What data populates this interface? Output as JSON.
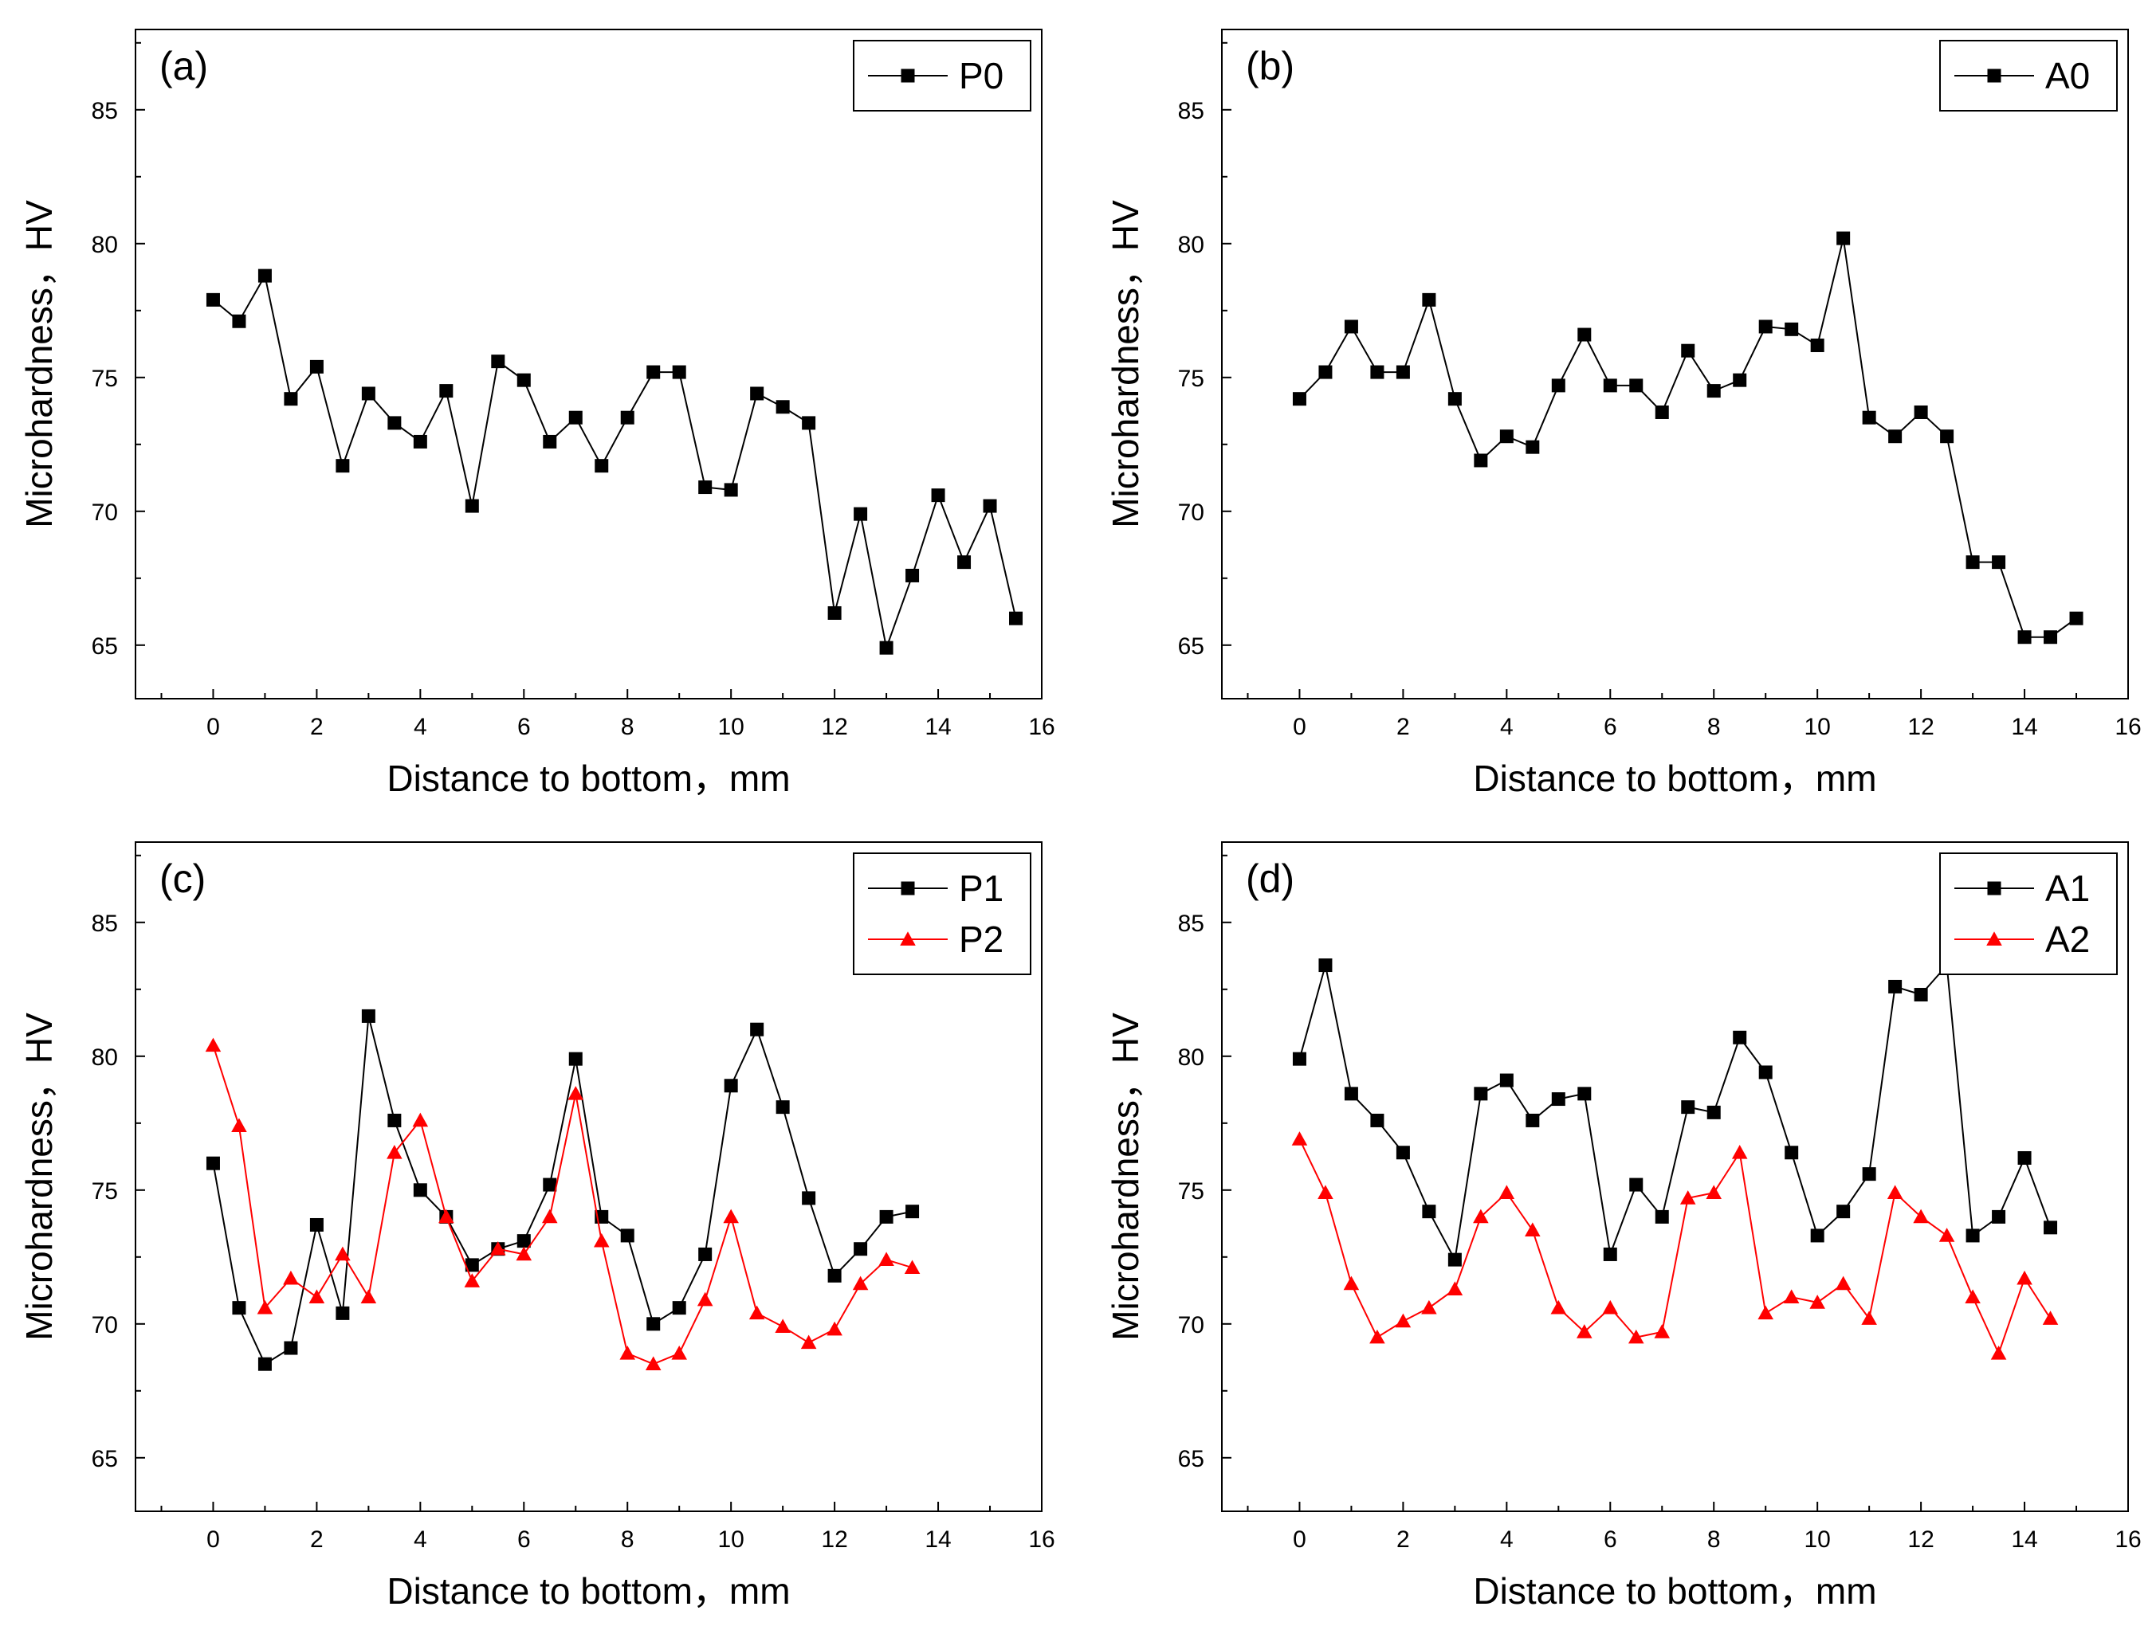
{
  "figure": {
    "background": "#ffffff",
    "axis_color": "#000000"
  },
  "chart_data": [
    {
      "type": "line",
      "panel_label": "(a)",
      "xlabel": "Distance to bottom，mm",
      "ylabel": "Microhardness，HV",
      "xlim": [
        -1.5,
        16
      ],
      "ylim": [
        63,
        88
      ],
      "xticks": [
        0,
        2,
        4,
        6,
        8,
        10,
        12,
        14,
        16
      ],
      "xtick_labels": [
        "0",
        "2",
        "4",
        "6",
        "8",
        "10",
        "12",
        "14",
        "16"
      ],
      "yticks": [
        65,
        70,
        75,
        80,
        85
      ],
      "ytick_labels": [
        "65",
        "70",
        "75",
        "80",
        "85"
      ],
      "legend_position": "top-right",
      "series": [
        {
          "name": "P0",
          "color": "#000000",
          "marker": "square",
          "x": [
            0,
            0.5,
            1,
            1.5,
            2,
            2.5,
            3,
            3.5,
            4,
            4.5,
            5,
            5.5,
            6,
            6.5,
            7,
            7.5,
            8,
            8.5,
            9,
            9.5,
            10,
            10.5,
            11,
            11.5,
            12,
            12.5,
            13,
            13.5,
            14,
            14.5,
            15,
            15.5
          ],
          "y": [
            77.9,
            77.1,
            78.8,
            74.2,
            75.4,
            71.7,
            74.4,
            73.3,
            72.6,
            74.5,
            70.2,
            75.6,
            74.9,
            72.6,
            73.5,
            71.7,
            73.5,
            75.2,
            75.2,
            70.9,
            70.8,
            74.4,
            73.9,
            73.3,
            66.2,
            69.9,
            64.9,
            67.6,
            70.6,
            68.1,
            70.2,
            66.0
          ]
        }
      ]
    },
    {
      "type": "line",
      "panel_label": "(b)",
      "xlabel": "Distance to bottom，mm",
      "ylabel": "Microhardness，HV",
      "xlim": [
        -1.5,
        16
      ],
      "ylim": [
        63,
        88
      ],
      "xticks": [
        0,
        2,
        4,
        6,
        8,
        10,
        12,
        14,
        16
      ],
      "xtick_labels": [
        "0",
        "2",
        "4",
        "6",
        "8",
        "10",
        "12",
        "14",
        "16"
      ],
      "yticks": [
        65,
        70,
        75,
        80,
        85
      ],
      "ytick_labels": [
        "65",
        "70",
        "75",
        "80",
        "85"
      ],
      "legend_position": "top-right",
      "series": [
        {
          "name": "A0",
          "color": "#000000",
          "marker": "square",
          "x": [
            0,
            0.5,
            1,
            1.5,
            2,
            2.5,
            3,
            3.5,
            4,
            4.5,
            5,
            5.5,
            6,
            6.5,
            7,
            7.5,
            8,
            8.5,
            9,
            9.5,
            10,
            10.5,
            11,
            11.5,
            12,
            12.5,
            13,
            13.5,
            14,
            14.5,
            15
          ],
          "y": [
            74.2,
            75.2,
            76.9,
            75.2,
            75.2,
            77.9,
            74.2,
            71.9,
            72.8,
            72.4,
            74.7,
            76.6,
            74.7,
            74.7,
            73.7,
            76.0,
            74.5,
            74.9,
            76.9,
            76.8,
            76.2,
            80.2,
            73.5,
            72.8,
            73.7,
            72.8,
            68.1,
            68.1,
            65.3,
            65.3,
            66.0
          ]
        }
      ]
    },
    {
      "type": "line",
      "panel_label": "(c)",
      "xlabel": "Distance to bottom，mm",
      "ylabel": "Microhardness，HV",
      "xlim": [
        -1.5,
        16
      ],
      "ylim": [
        63,
        88
      ],
      "xticks": [
        0,
        2,
        4,
        6,
        8,
        10,
        12,
        14,
        16
      ],
      "xtick_labels": [
        "0",
        "2",
        "4",
        "6",
        "8",
        "10",
        "12",
        "14",
        "16"
      ],
      "yticks": [
        65,
        70,
        75,
        80,
        85
      ],
      "ytick_labels": [
        "65",
        "70",
        "75",
        "80",
        "85"
      ],
      "legend_position": "top-right",
      "series": [
        {
          "name": "P1",
          "color": "#000000",
          "marker": "square",
          "x": [
            0,
            0.5,
            1,
            1.5,
            2,
            2.5,
            3,
            3.5,
            4,
            4.5,
            5,
            5.5,
            6,
            6.5,
            7,
            7.5,
            8,
            8.5,
            9,
            9.5,
            10,
            10.5,
            11,
            11.5,
            12,
            12.5,
            13,
            13.5
          ],
          "y": [
            76.0,
            70.6,
            68.5,
            69.1,
            73.7,
            70.4,
            81.5,
            77.6,
            75.0,
            74.0,
            72.2,
            72.8,
            73.1,
            75.2,
            79.9,
            74.0,
            73.3,
            70.0,
            70.6,
            72.6,
            78.9,
            81.0,
            78.1,
            74.7,
            71.8,
            72.8,
            74.0,
            74.2
          ]
        },
        {
          "name": "P2",
          "color": "#ff0000",
          "marker": "triangle",
          "x": [
            0,
            0.5,
            1,
            1.5,
            2,
            2.5,
            3,
            3.5,
            4,
            4.5,
            5,
            5.5,
            6,
            6.5,
            7,
            7.5,
            8,
            8.5,
            9,
            9.5,
            10,
            10.5,
            11,
            11.5,
            12,
            12.5,
            13,
            13.5
          ],
          "y": [
            80.4,
            77.4,
            70.6,
            71.7,
            71.0,
            72.6,
            71.0,
            76.4,
            77.6,
            74.0,
            71.6,
            72.8,
            72.6,
            74.0,
            78.6,
            73.1,
            68.9,
            68.5,
            68.9,
            70.9,
            74.0,
            70.4,
            69.9,
            69.3,
            69.8,
            71.5,
            72.4,
            72.1
          ]
        }
      ]
    },
    {
      "type": "line",
      "panel_label": "(d)",
      "xlabel": "Distance to bottom，mm",
      "ylabel": "Microhardness，HV",
      "xlim": [
        -1.5,
        16
      ],
      "ylim": [
        63,
        88
      ],
      "xticks": [
        0,
        2,
        4,
        6,
        8,
        10,
        12,
        14,
        16
      ],
      "xtick_labels": [
        "0",
        "2",
        "4",
        "6",
        "8",
        "10",
        "12",
        "14",
        "16"
      ],
      "yticks": [
        65,
        70,
        75,
        80,
        85
      ],
      "ytick_labels": [
        "65",
        "70",
        "75",
        "80",
        "85"
      ],
      "legend_position": "top-right",
      "series": [
        {
          "name": "A1",
          "color": "#000000",
          "marker": "square",
          "x": [
            0,
            0.5,
            1,
            1.5,
            2,
            2.5,
            3,
            3.5,
            4,
            4.5,
            5,
            5.5,
            6,
            6.5,
            7,
            7.5,
            8,
            8.5,
            9,
            9.5,
            10,
            10.5,
            11,
            11.5,
            12,
            12.5,
            13,
            13.5,
            14,
            14.5
          ],
          "y": [
            79.9,
            83.4,
            78.6,
            77.6,
            76.4,
            74.2,
            72.4,
            78.6,
            79.1,
            77.6,
            78.4,
            78.6,
            72.6,
            75.2,
            74.0,
            78.1,
            77.9,
            80.7,
            79.4,
            76.4,
            73.3,
            74.2,
            75.6,
            82.6,
            82.3,
            83.4,
            73.3,
            74.0,
            76.2,
            73.6
          ]
        },
        {
          "name": "A2",
          "color": "#ff0000",
          "marker": "triangle",
          "x": [
            0,
            0.5,
            1,
            1.5,
            2,
            2.5,
            3,
            3.5,
            4,
            4.5,
            5,
            5.5,
            6,
            6.5,
            7,
            7.5,
            8,
            8.5,
            9,
            9.5,
            10,
            10.5,
            11,
            11.5,
            12,
            12.5,
            13,
            13.5,
            14,
            14.5
          ],
          "y": [
            76.9,
            74.9,
            71.5,
            69.5,
            70.1,
            70.6,
            71.3,
            74.0,
            74.9,
            73.5,
            70.6,
            69.7,
            70.6,
            69.5,
            69.7,
            74.7,
            74.9,
            76.4,
            70.4,
            71.0,
            70.8,
            71.5,
            70.2,
            74.9,
            74.0,
            73.3,
            71.0,
            68.9,
            71.7,
            70.2
          ]
        }
      ]
    }
  ]
}
